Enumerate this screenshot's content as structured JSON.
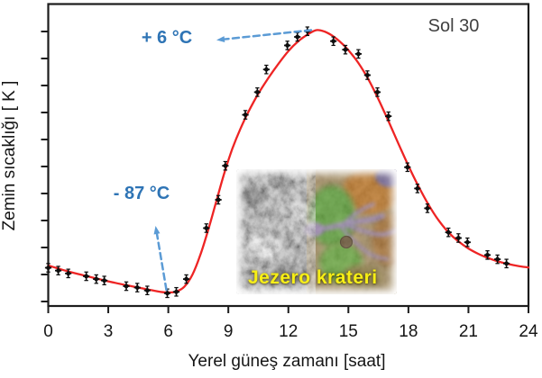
{
  "chart_data": {
    "type": "scatter",
    "title": "Sol 30",
    "xlabel": "Yerel güneş zamanı [saat]",
    "ylabel": "Zemin sıcaklığı  [ K ]",
    "xlim": [
      0,
      24
    ],
    "x_ticks": [
      0,
      3,
      6,
      9,
      12,
      15,
      18,
      21,
      24
    ],
    "ylim": [
      181.5,
      288.1
    ],
    "y_axis_ticks": "11 unlabeled ticks",
    "grid": false,
    "legend": "none",
    "series": [
      {
        "name": "measurements",
        "type": "scatter",
        "marker": "black dot with error bars",
        "y_error_K": 1.5,
        "x": [
          0,
          0.5,
          1.0,
          1.9,
          2.4,
          2.8,
          3.9,
          4.45,
          4.95,
          5.95,
          6.4,
          6.9,
          7.9,
          8.5,
          8.85,
          9.85,
          10.45,
          10.9,
          11.95,
          12.45,
          12.95,
          14.25,
          14.85,
          15.5,
          15.95,
          16.45,
          17.0,
          17.95,
          18.45,
          18.95,
          20.0,
          20.5,
          20.95,
          21.95,
          22.45,
          22.9
        ],
        "y": [
          195,
          194,
          193,
          192,
          191,
          190.5,
          188.5,
          188,
          187,
          186,
          186.5,
          191,
          209,
          219,
          231,
          249,
          257,
          265,
          273.5,
          276.5,
          278.5,
          275,
          272,
          270.5,
          263,
          257,
          248.5,
          230.5,
          223,
          216,
          207.5,
          205.5,
          204,
          199.5,
          198,
          196.5
        ]
      },
      {
        "name": "fit",
        "type": "line",
        "color": "#ee2424",
        "x": [
          0,
          1,
          2,
          3,
          4,
          5,
          5.6,
          6.0,
          6.4,
          6.8,
          7.2,
          7.6,
          8.0,
          8.4,
          8.8,
          9.2,
          9.6,
          10.0,
          10.5,
          11.0,
          11.5,
          12.0,
          12.5,
          13.0,
          13.4,
          13.8,
          14.2,
          14.6,
          15.0,
          15.5,
          16.0,
          16.5,
          17.0,
          17.5,
          18.0,
          18.5,
          19.0,
          19.5,
          20.0,
          20.5,
          21.0,
          21.5,
          22.0,
          22.5,
          23.0,
          23.5,
          24.0
        ],
        "y": [
          195.8,
          193.7,
          191.9,
          190.2,
          188.7,
          187.3,
          186.5,
          186.3,
          186.6,
          188.3,
          192.5,
          199.5,
          208.5,
          218.5,
          228.5,
          237.0,
          244.0,
          250.0,
          256.5,
          262.0,
          267.0,
          271.5,
          275.0,
          277.5,
          278.9,
          278.4,
          276.9,
          274.7,
          271.8,
          267.3,
          261.5,
          254.5,
          246.8,
          238.8,
          231.0,
          223.8,
          217.3,
          211.8,
          207.5,
          204.3,
          201.8,
          199.9,
          198.4,
          197.2,
          196.3,
          195.6,
          195.1
        ]
      }
    ],
    "annotations": {
      "max_temp": {
        "label": "+ 6 °C",
        "value_K": 279,
        "at_hour": 13.4,
        "color": "#2e74b5"
      },
      "min_temp": {
        "label": "- 87 °C",
        "value_K": 186,
        "at_hour": 5.9,
        "color": "#2e74b5"
      },
      "sol": {
        "label": "Sol 30",
        "color": "#404040",
        "position": "top-right"
      }
    },
    "colors": {
      "curve": "#ee2424",
      "marker": "#0d0d0d",
      "axis": "#1c1c1c",
      "arrow": "#5b9bd5"
    }
  },
  "inset": {
    "caption": "Jezero krateri",
    "caption_color": "#f7ef15",
    "description": "false-color orbital image of Jezero crater delta"
  }
}
